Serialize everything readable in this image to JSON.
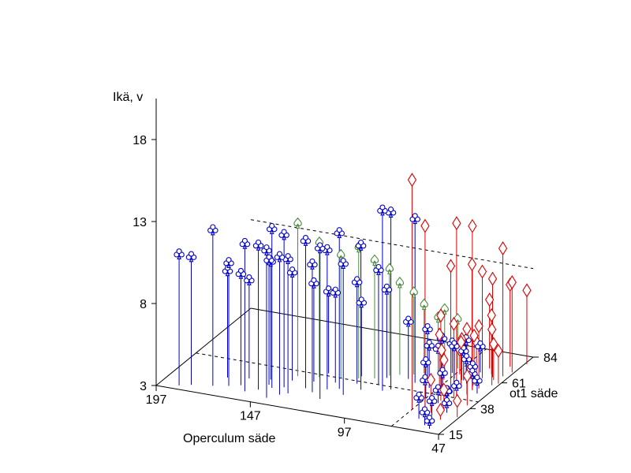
{
  "chart_data": {
    "type": "scatter3d",
    "title": "",
    "zlabel": "Ikä, v",
    "xlabel": "Operculum säde",
    "ylabel": "ot1 säde",
    "x_ticks": [
      "197",
      "147",
      "97",
      "47"
    ],
    "y_ticks": [
      "15",
      "38",
      "61",
      "84"
    ],
    "z_ticks": [
      "3",
      "8",
      "13",
      "18"
    ],
    "xlim": [
      197,
      47
    ],
    "ylim": [
      15,
      84
    ],
    "zlim": [
      3,
      20.5
    ],
    "grid": false,
    "legend": "none",
    "series": [
      {
        "marker": "club",
        "color": "#0000cc",
        "points": [
          [
            187,
            18,
            11.0
          ],
          [
            182,
            20,
            10.8
          ],
          [
            172,
            22,
            12.5
          ],
          [
            165,
            24,
            10.5
          ],
          [
            160,
            26,
            9.8
          ],
          [
            155,
            22,
            12.0
          ],
          [
            150,
            25,
            11.8
          ],
          [
            145,
            28,
            12.7
          ],
          [
            140,
            30,
            12.3
          ],
          [
            135,
            26,
            11.2
          ],
          [
            130,
            32,
            12.0
          ],
          [
            125,
            30,
            10.8
          ],
          [
            120,
            34,
            11.5
          ],
          [
            115,
            36,
            12.5
          ],
          [
            110,
            32,
            11.0
          ],
          [
            105,
            38,
            11.8
          ],
          [
            170,
            30,
            9.5
          ],
          [
            160,
            32,
            9.0
          ],
          [
            150,
            34,
            10.2
          ],
          [
            140,
            36,
            9.6
          ],
          [
            130,
            38,
            9.0
          ],
          [
            120,
            40,
            8.5
          ],
          [
            110,
            42,
            9.2
          ],
          [
            100,
            44,
            10.0
          ],
          [
            95,
            40,
            14.0
          ],
          [
            92,
            42,
            13.8
          ],
          [
            85,
            50,
            13.0
          ],
          [
            128,
            46,
            8.0
          ],
          [
            112,
            48,
            7.5
          ],
          [
            100,
            50,
            8.4
          ],
          [
            90,
            52,
            6.5
          ],
          [
            82,
            55,
            6.0
          ],
          [
            75,
            56,
            5.5
          ],
          [
            70,
            58,
            5.0
          ],
          [
            65,
            58,
            4.8
          ],
          [
            62,
            56,
            4.5
          ],
          [
            58,
            55,
            4.2
          ],
          [
            56,
            52,
            4.0
          ],
          [
            52,
            50,
            3.8
          ],
          [
            60,
            46,
            3.6
          ],
          [
            62,
            42,
            3.5
          ],
          [
            64,
            38,
            3.8
          ],
          [
            58,
            36,
            4.0
          ],
          [
            55,
            32,
            3.6
          ],
          [
            60,
            28,
            3.9
          ],
          [
            64,
            24,
            4.3
          ],
          [
            58,
            20,
            3.8
          ],
          [
            54,
            18,
            3.5
          ],
          [
            68,
            34,
            4.6
          ],
          [
            72,
            40,
            5.2
          ],
          [
            66,
            44,
            4.4
          ],
          [
            76,
            48,
            5.6
          ],
          [
            80,
            60,
            4.5
          ],
          [
            74,
            62,
            4.8
          ],
          [
            68,
            64,
            5.0
          ],
          [
            62,
            66,
            4.6
          ],
          [
            142,
            20,
            12.0
          ],
          [
            138,
            24,
            11.4
          ],
          [
            148,
            30,
            10.6
          ],
          [
            118,
            26,
            12.2
          ]
        ]
      },
      {
        "marker": "spade",
        "color": "#4a8a3a",
        "points": [
          [
            140,
            40,
            12.3
          ],
          [
            130,
            42,
            11.2
          ],
          [
            120,
            44,
            10.5
          ],
          [
            112,
            46,
            11.0
          ],
          [
            105,
            48,
            10.2
          ],
          [
            100,
            52,
            9.5
          ],
          [
            96,
            54,
            8.6
          ],
          [
            90,
            56,
            8.0
          ],
          [
            86,
            58,
            7.2
          ],
          [
            80,
            60,
            6.4
          ],
          [
            78,
            62,
            6.8
          ],
          [
            74,
            66,
            6.0
          ]
        ]
      },
      {
        "marker": "diamond",
        "color": "#dd0000",
        "points": [
          [
            72,
            30,
            17.0
          ],
          [
            68,
            34,
            14.0
          ],
          [
            60,
            46,
            13.5
          ],
          [
            56,
            52,
            13.0
          ],
          [
            66,
            50,
            10.5
          ],
          [
            62,
            60,
            10.0
          ],
          [
            58,
            62,
            9.5
          ],
          [
            54,
            64,
            9.0
          ],
          [
            50,
            66,
            10.8
          ],
          [
            48,
            70,
            8.5
          ],
          [
            52,
            74,
            8.0
          ],
          [
            46,
            78,
            7.5
          ],
          [
            64,
            40,
            8.2
          ],
          [
            60,
            44,
            7.5
          ],
          [
            56,
            48,
            7.0
          ],
          [
            54,
            54,
            6.8
          ],
          [
            50,
            58,
            6.4
          ],
          [
            58,
            56,
            6.0
          ],
          [
            62,
            52,
            5.8
          ],
          [
            66,
            58,
            5.5
          ],
          [
            52,
            62,
            5.2
          ],
          [
            48,
            60,
            5.0
          ],
          [
            56,
            66,
            6.6
          ],
          [
            60,
            70,
            7.2
          ],
          [
            64,
            66,
            4.8
          ],
          [
            70,
            62,
            4.5
          ],
          [
            74,
            56,
            4.2
          ],
          [
            68,
            46,
            5.6
          ],
          [
            72,
            50,
            6.2
          ],
          [
            50,
            40,
            4.8
          ],
          [
            48,
            30,
            4.0
          ],
          [
            54,
            26,
            3.6
          ],
          [
            58,
            34,
            4.2
          ],
          [
            62,
            30,
            5.0
          ]
        ]
      }
    ]
  }
}
